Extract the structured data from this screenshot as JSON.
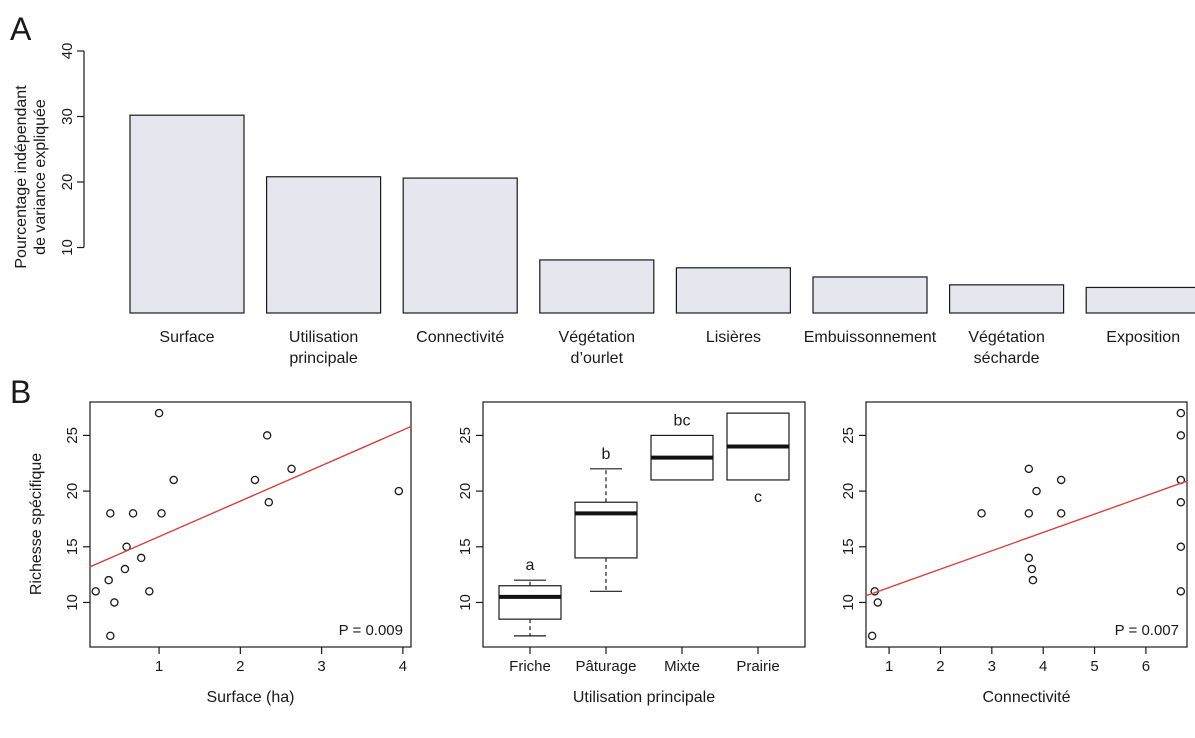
{
  "colors": {
    "bar_fill": "#e6e6ee",
    "axis": "#1a1a1a",
    "regression_line": "#d9423a",
    "median_line": "#111111"
  },
  "chart_data": [
    {
      "panel_label": "A",
      "type": "bar",
      "ylabel": "Pourcentage indépendant\nde variance expliquée",
      "xlabel": "",
      "ylim": [
        0,
        40
      ],
      "yticks": [
        10,
        20,
        30,
        40
      ],
      "categories": [
        "Surface",
        "Utilisation\nprincipale",
        "Connectivité",
        "Végétation\nd’ourlet",
        "Lisières",
        "Embuissonnement",
        "Végétation\nsécharde",
        "Exposition"
      ],
      "values": [
        30.2,
        20.8,
        20.6,
        8.1,
        6.9,
        5.5,
        4.3,
        3.9
      ],
      "grid": false
    },
    {
      "panel_label": "B",
      "type": "scatter",
      "xlabel": "Surface (ha)",
      "ylabel": "Richesse spécifique",
      "xlim": [
        0.15,
        4.1
      ],
      "ylim": [
        6,
        28
      ],
      "xticks": [
        1,
        2,
        3,
        4
      ],
      "yticks": [
        10,
        15,
        20,
        25
      ],
      "points": [
        [
          0.22,
          11
        ],
        [
          0.38,
          12
        ],
        [
          0.4,
          18
        ],
        [
          0.4,
          7
        ],
        [
          0.45,
          10
        ],
        [
          0.58,
          13
        ],
        [
          0.6,
          15
        ],
        [
          0.68,
          18
        ],
        [
          0.78,
          14
        ],
        [
          0.88,
          11
        ],
        [
          1.0,
          27
        ],
        [
          1.03,
          18
        ],
        [
          1.18,
          21
        ],
        [
          2.18,
          21
        ],
        [
          2.33,
          25
        ],
        [
          2.35,
          19
        ],
        [
          2.63,
          22
        ],
        [
          3.95,
          20
        ]
      ],
      "fit_line": {
        "x": [
          0.15,
          4.1
        ],
        "y": [
          13.2,
          25.8
        ]
      },
      "annotation": "P = 0.009",
      "grid": false
    },
    {
      "type": "box",
      "xlabel": "Utilisation principale",
      "ylabel": "",
      "ylim": [
        6,
        28
      ],
      "yticks": [
        10,
        15,
        20,
        25
      ],
      "categories": [
        "Friche",
        "Pâturage",
        "Mixte",
        "Prairie"
      ],
      "boxes": [
        {
          "min": 7,
          "q1": 8.5,
          "median": 10.5,
          "q3": 11.5,
          "max": 12,
          "label": "a",
          "label_pos": "above"
        },
        {
          "min": 11,
          "q1": 14,
          "median": 18,
          "q3": 19,
          "max": 22,
          "label": "b",
          "label_pos": "above"
        },
        {
          "min": 21,
          "q1": 21,
          "median": 23,
          "q3": 25,
          "max": 25,
          "label": "bc",
          "label_pos": "above"
        },
        {
          "min": 21,
          "q1": 21,
          "median": 24,
          "q3": 27,
          "max": 27,
          "label": "c",
          "label_pos": "below"
        }
      ],
      "grid": false
    },
    {
      "type": "scatter",
      "xlabel": "Connectivité",
      "ylabel": "",
      "xlim": [
        0.55,
        6.8
      ],
      "ylim": [
        6,
        28
      ],
      "xticks": [
        1,
        2,
        3,
        4,
        5,
        6
      ],
      "yticks": [
        10,
        15,
        20,
        25
      ],
      "points": [
        [
          0.67,
          7
        ],
        [
          0.72,
          11
        ],
        [
          0.78,
          10
        ],
        [
          2.8,
          18
        ],
        [
          3.72,
          22
        ],
        [
          3.72,
          18
        ],
        [
          3.72,
          14
        ],
        [
          3.78,
          13
        ],
        [
          3.8,
          12
        ],
        [
          3.87,
          20
        ],
        [
          4.35,
          21
        ],
        [
          4.35,
          18
        ],
        [
          6.68,
          27
        ],
        [
          6.68,
          25
        ],
        [
          6.68,
          21
        ],
        [
          6.68,
          19
        ],
        [
          6.68,
          15
        ],
        [
          6.68,
          11
        ]
      ],
      "fit_line": {
        "x": [
          0.55,
          6.8
        ],
        "y": [
          10.6,
          20.9
        ]
      },
      "annotation": "P = 0.007",
      "grid": false
    }
  ]
}
